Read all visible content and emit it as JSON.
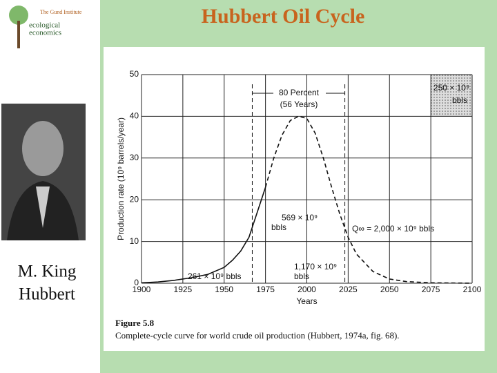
{
  "slide": {
    "title": "Hubbert Oil Cycle",
    "logo": [
      "The Gund Institute",
      "ecological",
      "economics"
    ],
    "caption": [
      "M. King",
      "Hubbert"
    ],
    "figure_label": "Figure 5.8",
    "figure_caption": "Complete-cycle curve for world crude oil production (Hubbert, 1974a, fig. 68)."
  },
  "chart_data": {
    "type": "line",
    "xlabel": "Years",
    "ylabel": "Production rate (10⁹ barrels/year)",
    "x": [
      1900,
      1910,
      1920,
      1930,
      1940,
      1950,
      1955,
      1960,
      1965,
      1970,
      1975,
      1980,
      1985,
      1990,
      1995,
      2000,
      2005,
      2010,
      2015,
      2020,
      2025,
      2030,
      2040,
      2050,
      2060,
      2075,
      2100
    ],
    "series": [
      {
        "color": "#111111",
        "dashed": false,
        "values": [
          0.1,
          0.3,
          0.7,
          1.3,
          2.1,
          3.8,
          5.5,
          7.7,
          11,
          17,
          23,
          null,
          null,
          null,
          null,
          null,
          null,
          null,
          null,
          null,
          null,
          null,
          null,
          null,
          null,
          null,
          null
        ]
      },
      {
        "color": "#111111",
        "dashed": true,
        "values": [
          null,
          null,
          null,
          null,
          null,
          null,
          null,
          null,
          null,
          null,
          23,
          30,
          35.5,
          39,
          40,
          39.5,
          36,
          30,
          23,
          16.5,
          11,
          7,
          2.8,
          1,
          0.4,
          0.1,
          0
        ]
      }
    ],
    "xlim": [
      1900,
      2100
    ],
    "xticks": [
      1900,
      1925,
      1950,
      1975,
      2000,
      2025,
      2050,
      2075,
      2100
    ],
    "ylim": [
      0,
      50
    ],
    "yticks": [
      0,
      10,
      20,
      30,
      40,
      50
    ],
    "grid": true,
    "span_80_percent": [
      1967,
      2023
    ],
    "annotations": [
      "80 Percent",
      "(56 Years)",
      "250 × 10⁹",
      "bbls",
      "569 × 10⁹",
      "bbls",
      "1,170 × 10⁹",
      "bbls",
      "261 × 10⁹ bbls",
      "Q∞ = 2,000 × 10⁹ bbls"
    ]
  }
}
